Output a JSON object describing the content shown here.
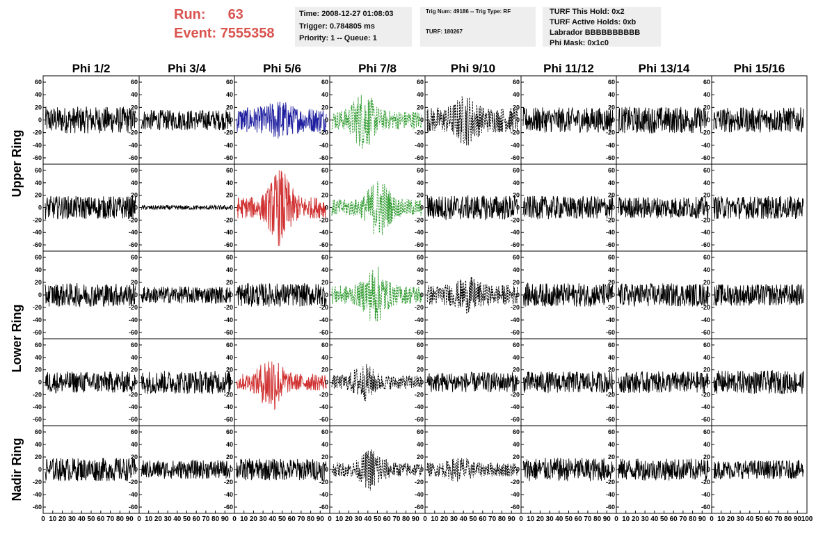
{
  "header": {
    "run_label": "Run:",
    "run_value": "63",
    "event_label": "Event:",
    "event_value": "7555358",
    "info1": [
      "Time: 2008-12-27 01:08:03",
      "Trigger: 0.784805 ms",
      "Priority: 1 -- Queue: 1"
    ],
    "info2": [
      "Trig Num: 49186 -- Trig Type: RF",
      "TURF: 180267"
    ],
    "info3": [
      "TURF This Hold: 0x2",
      "TURF Active Holds: 0xb",
      "Labrador BBBBBBBBBB",
      "Phi Mask: 0x1c0"
    ]
  },
  "chart_data": {
    "type": "line",
    "columns": [
      "Phi 1/2",
      "Phi 3/4",
      "Phi 5/6",
      "Phi 7/8",
      "Phi 9/10",
      "Phi 11/12",
      "Phi 13/14",
      "Phi 15/16"
    ],
    "rows": [
      "Upper Ring",
      "Lower Ring",
      "Nadir Ring"
    ],
    "ylim": [
      -70,
      70
    ],
    "y_ticks": [
      -60,
      -40,
      -20,
      0,
      20,
      40,
      60
    ],
    "xlim": [
      0,
      100
    ],
    "x_ticks": [
      0,
      10,
      20,
      30,
      40,
      50,
      60,
      70,
      80,
      90,
      100
    ],
    "panel_rows": [
      {
        "ring": "Upper Ring",
        "panels": [
          {
            "color": "#000000",
            "style": "solid",
            "amp": 17,
            "burst": 0
          },
          {
            "color": "#000000",
            "style": "solid",
            "amp": 13,
            "burst": 0
          },
          {
            "color": "#1f1fa0",
            "style": "solid",
            "amp": 16,
            "burst": 0.3
          },
          {
            "color": "#2e9a2e",
            "style": "dashed",
            "amp": 12,
            "burst": 1.0
          },
          {
            "color": "#000000",
            "style": "dashed",
            "amp": 16,
            "burst": 0.5
          },
          {
            "color": "#000000",
            "style": "solid",
            "amp": 16,
            "burst": 0
          },
          {
            "color": "#000000",
            "style": "solid",
            "amp": 17,
            "burst": 0
          },
          {
            "color": "#000000",
            "style": "solid",
            "amp": 16,
            "burst": 0
          }
        ]
      },
      {
        "ring": "Upper Ring",
        "panels": [
          {
            "color": "#000000",
            "style": "solid",
            "amp": 15,
            "burst": 0
          },
          {
            "color": "#000000",
            "style": "solid",
            "amp": 3,
            "burst": 0
          },
          {
            "color": "#d03030",
            "style": "solid",
            "amp": 14,
            "burst": 1.2
          },
          {
            "color": "#2e9a2e",
            "style": "dashed",
            "amp": 11,
            "burst": 1.2
          },
          {
            "color": "#000000",
            "style": "solid",
            "amp": 16,
            "burst": 0
          },
          {
            "color": "#000000",
            "style": "solid",
            "amp": 15,
            "burst": 0
          },
          {
            "color": "#000000",
            "style": "solid",
            "amp": 14,
            "burst": 0
          },
          {
            "color": "#000000",
            "style": "solid",
            "amp": 15,
            "burst": 0
          }
        ]
      },
      {
        "ring": "Lower Ring",
        "panels": [
          {
            "color": "#000000",
            "style": "solid",
            "amp": 15,
            "burst": 0
          },
          {
            "color": "#000000",
            "style": "solid",
            "amp": 11,
            "burst": 0
          },
          {
            "color": "#000000",
            "style": "solid",
            "amp": 15,
            "burst": 0
          },
          {
            "color": "#2e9a2e",
            "style": "dashed",
            "amp": 12,
            "burst": 1.0
          },
          {
            "color": "#000000",
            "style": "dashed",
            "amp": 13,
            "burst": 0.4
          },
          {
            "color": "#000000",
            "style": "solid",
            "amp": 15,
            "burst": 0
          },
          {
            "color": "#000000",
            "style": "solid",
            "amp": 15,
            "burst": 0
          },
          {
            "color": "#000000",
            "style": "solid",
            "amp": 14,
            "burst": 0
          }
        ]
      },
      {
        "ring": "Lower Ring",
        "panels": [
          {
            "color": "#000000",
            "style": "solid",
            "amp": 14,
            "burst": 0
          },
          {
            "color": "#000000",
            "style": "solid",
            "amp": 15,
            "burst": 0
          },
          {
            "color": "#d03030",
            "style": "solid",
            "amp": 11,
            "burst": 1.2
          },
          {
            "color": "#000000",
            "style": "dashed",
            "amp": 9,
            "burst": 0.8
          },
          {
            "color": "#000000",
            "style": "solid",
            "amp": 13,
            "burst": 0
          },
          {
            "color": "#000000",
            "style": "solid",
            "amp": 14,
            "burst": 0
          },
          {
            "color": "#000000",
            "style": "solid",
            "amp": 14,
            "burst": 0
          },
          {
            "color": "#000000",
            "style": "solid",
            "amp": 15,
            "burst": 0
          }
        ]
      },
      {
        "ring": "Nadir Ring",
        "panels": [
          {
            "color": "#000000",
            "style": "solid",
            "amp": 15,
            "burst": 0
          },
          {
            "color": "#000000",
            "style": "solid",
            "amp": 12,
            "burst": 0
          },
          {
            "color": "#000000",
            "style": "solid",
            "amp": 14,
            "burst": 0
          },
          {
            "color": "#000000",
            "style": "dashed",
            "amp": 9,
            "burst": 1.0
          },
          {
            "color": "#000000",
            "style": "dashed",
            "amp": 9,
            "burst": 0.4
          },
          {
            "color": "#000000",
            "style": "solid",
            "amp": 15,
            "burst": 0
          },
          {
            "color": "#000000",
            "style": "solid",
            "amp": 14,
            "burst": 0
          },
          {
            "color": "#000000",
            "style": "solid",
            "amp": 12,
            "burst": 0
          }
        ]
      }
    ],
    "ring_labels": [
      {
        "text": "Upper Ring",
        "spans_rows": [
          0,
          1
        ]
      },
      {
        "text": "Lower Ring",
        "spans_rows": [
          2,
          3
        ]
      },
      {
        "text": "Nadir Ring",
        "spans_rows": [
          4,
          4
        ]
      }
    ]
  }
}
